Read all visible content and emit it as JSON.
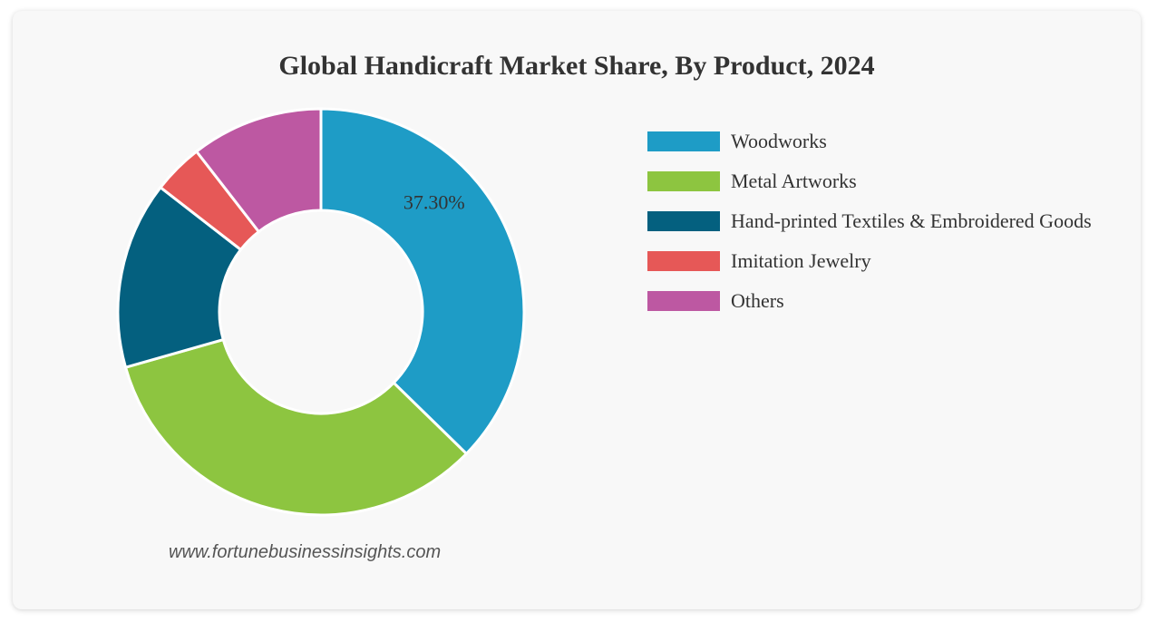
{
  "chart_data": {
    "type": "pie",
    "variant": "donut",
    "title": "Global Handicraft Market Share, By Product, 2024",
    "categories": [
      "Woodworks",
      "Metal Artworks",
      "Hand-printed Textiles & Embroidered Goods",
      "Imitation Jewelry",
      "Others"
    ],
    "values": [
      37.3,
      33.3,
      14.9,
      4.0,
      10.5
    ],
    "colors": [
      "#1e9cc6",
      "#8dc540",
      "#04607f",
      "#e65857",
      "#bd58a2"
    ],
    "data_labels": [
      "37.30%",
      "",
      "",
      "",
      ""
    ],
    "legend_position": "right"
  },
  "source": "www.fortunebusinessinsights.com"
}
